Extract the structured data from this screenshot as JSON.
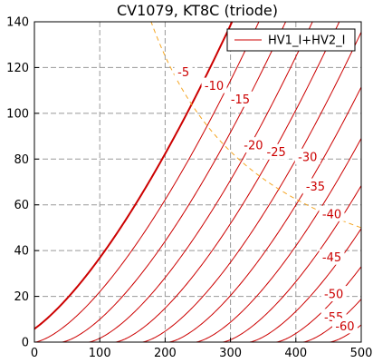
{
  "chart_data": {
    "type": "line",
    "title": "CV1079, KT8C (triode)",
    "xlabel": "",
    "ylabel": "",
    "xlim": [
      0,
      500
    ],
    "ylim": [
      0,
      140
    ],
    "xticks": [
      0,
      100,
      200,
      300,
      400,
      500
    ],
    "yticks": [
      0,
      20,
      40,
      60,
      80,
      100,
      120,
      140
    ],
    "grid": true,
    "legend": {
      "position": "top-right",
      "entries": [
        "HV1_I+HV2_I"
      ]
    },
    "line_color": "#cc0000",
    "dissipation_color": "#f5a623",
    "curve_model": {
      "mu": 8.2,
      "offset_v": 5,
      "k": 0.022,
      "exponent": 1.5
    },
    "curves": [
      {
        "grid_v": 0,
        "label": ""
      },
      {
        "grid_v": -5,
        "label": "-5"
      },
      {
        "grid_v": -10,
        "label": "-10"
      },
      {
        "grid_v": -15,
        "label": "-15"
      },
      {
        "grid_v": -20,
        "label": "-20"
      },
      {
        "grid_v": -25,
        "label": "-25"
      },
      {
        "grid_v": -30,
        "label": "-30"
      },
      {
        "grid_v": -35,
        "label": "-35"
      },
      {
        "grid_v": -40,
        "label": "-40"
      },
      {
        "grid_v": -45,
        "label": "-45"
      },
      {
        "grid_v": -50,
        "label": "-50"
      },
      {
        "grid_v": -55,
        "label": "-55"
      },
      {
        "grid_v": -60,
        "label": "-60"
      }
    ],
    "dissipation_curve": {
      "power_w": 25,
      "x_start": 170,
      "x_end": 500
    },
    "label_positions": [
      {
        "grid_v": -5,
        "x": 228,
        "y": 118
      },
      {
        "grid_v": -10,
        "x": 275,
        "y": 112
      },
      {
        "grid_v": -15,
        "x": 315,
        "y": 106
      },
      {
        "grid_v": -20,
        "x": 335,
        "y": 86
      },
      {
        "grid_v": -25,
        "x": 370,
        "y": 83
      },
      {
        "grid_v": -30,
        "x": 418,
        "y": 81
      },
      {
        "grid_v": -35,
        "x": 430,
        "y": 68
      },
      {
        "grid_v": -40,
        "x": 455,
        "y": 56
      },
      {
        "grid_v": -45,
        "x": 455,
        "y": 37
      },
      {
        "grid_v": -50,
        "x": 458,
        "y": 21
      },
      {
        "grid_v": -55,
        "x": 458,
        "y": 11
      },
      {
        "grid_v": -60,
        "x": 475,
        "y": 7
      }
    ]
  }
}
